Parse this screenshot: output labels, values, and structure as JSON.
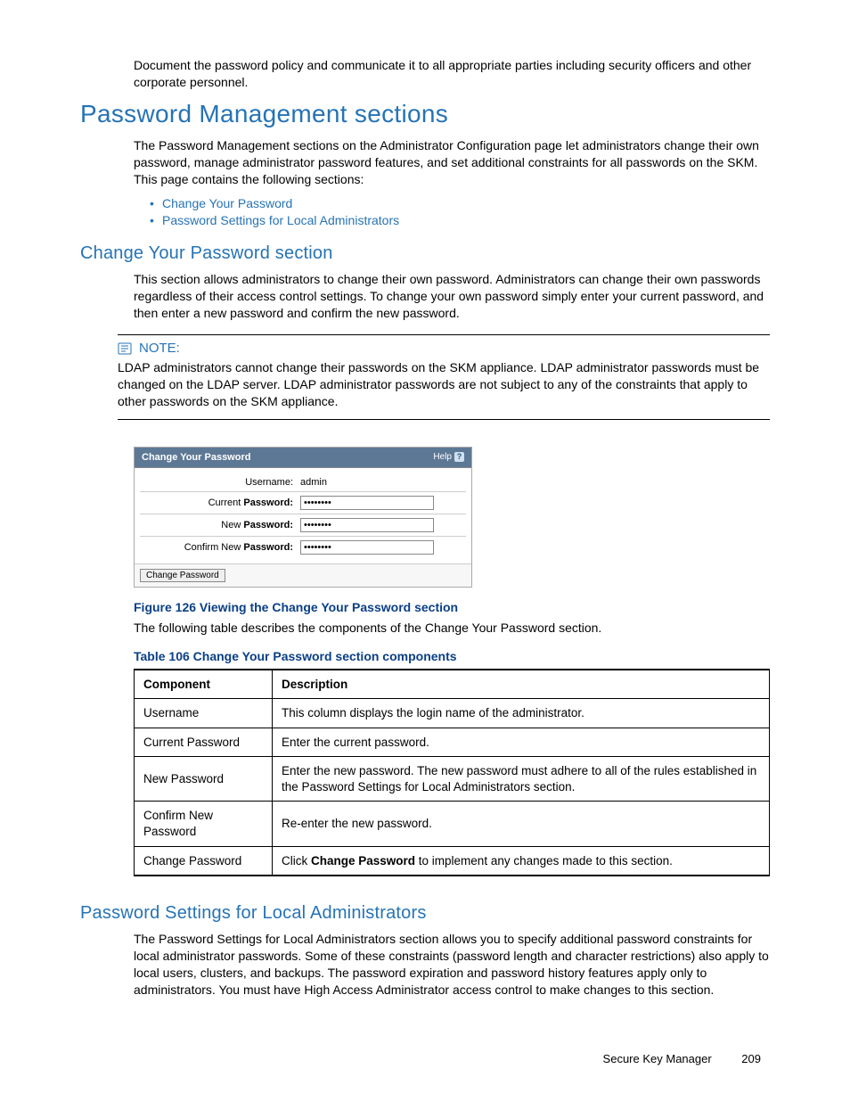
{
  "intro_para": "Document the password policy and communicate it to all appropriate parties including security officers and other corporate personnel.",
  "section1": {
    "title": "Password Management sections",
    "para": "The Password Management sections on the Administrator Configuration page let administrators change their own password, manage administrator password features, and set additional constraints for all passwords on the SKM. This page contains the following sections:",
    "links": [
      "Change Your Password",
      "Password Settings for Local Administrators"
    ]
  },
  "section2": {
    "title": "Change Your Password section",
    "para": "This section allows administrators to change their own password. Administrators can change their own passwords regardless of their access control settings. To change your own password simply enter your current password, and then enter a new password and confirm the new password."
  },
  "note": {
    "label": "NOTE:",
    "body": "LDAP administrators cannot change their passwords on the SKM appliance. LDAP administrator passwords must be changed on the LDAP server. LDAP administrator passwords are not subject to any of the constraints that apply to other passwords on the SKM appliance."
  },
  "panel": {
    "title": "Change Your Password",
    "help": "Help",
    "rows": {
      "username_label": "Username:",
      "username_value": "admin",
      "current_label_pre": "Current ",
      "current_label_bold": "Password:",
      "current_value": "••••••••",
      "new_label_pre": "New ",
      "new_label_bold": "Password:",
      "new_value": "••••••••",
      "confirm_label_pre": "Confirm New ",
      "confirm_label_bold": "Password:",
      "confirm_value": "••••••••"
    },
    "button": "Change Password"
  },
  "figure_caption": "Figure 126 Viewing the Change Your Password section",
  "table_intro": "The following table describes the components of the Change Your Password section.",
  "table_caption": "Table 106 Change Your Password section components",
  "table": {
    "headers": [
      "Component",
      "Description"
    ],
    "rows": [
      [
        "Username",
        "This column displays the login name of the administrator."
      ],
      [
        "Current Password",
        "Enter the current password."
      ],
      [
        "New Password",
        "Enter the new password. The new password must adhere to all of the rules established in the Password Settings for Local Administrators section."
      ],
      [
        "Confirm New Password",
        "Re-enter the new password."
      ],
      [
        "Change Password",
        "Click <b>Change Password</b> to implement any changes made to this section."
      ]
    ]
  },
  "section3": {
    "title": "Password Settings for Local Administrators",
    "para": "The Password Settings for Local Administrators section allows you to specify additional password constraints for local administrator passwords. Some of these constraints (password length and character restrictions) also apply to local users, clusters, and backups. The password expiration and password history features apply only to administrators. You must have High Access Administrator access control to make changes to this section."
  },
  "footer": {
    "doc": "Secure Key Manager",
    "page": "209"
  },
  "colors": {
    "link_blue": "#2673b5",
    "caption_blue": "#0a3f86",
    "panel_header": "#5d7895"
  }
}
